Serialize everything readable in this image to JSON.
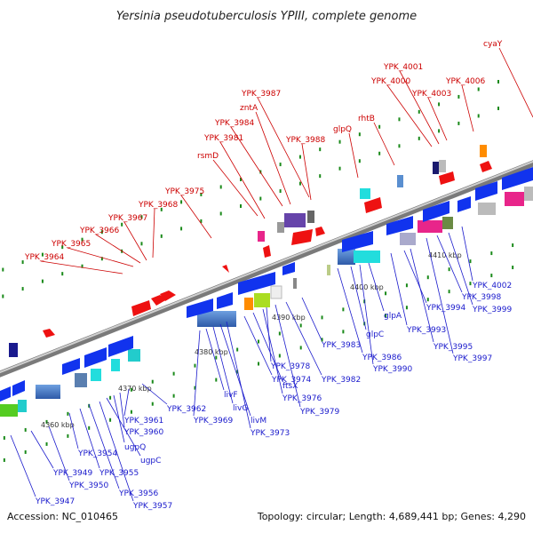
{
  "title": "Yersinia pseudotuberculosis YPIII, complete genome",
  "accession": "Accession: NC_010465",
  "topology": "Topology: circular; Length: 4,689,441 bp; Genes: 4,290",
  "ticks": [
    "4360 kbp",
    "4370 kbp",
    "4380 kbp",
    "4390 kbp",
    "4400 kbp",
    "4410 kbp"
  ],
  "top_labels": [
    "YPK_3964",
    "YPK_3965",
    "YPK_3966",
    "YPK_3967",
    "YPK_3968",
    "YPK_3975",
    "rsmD",
    "YPK_3981",
    "YPK_3984",
    "zntA",
    "YPK_3987",
    "YPK_3988",
    "glpQ",
    "rhtB",
    "YPK_4000",
    "YPK_4001",
    "YPK_4003",
    "YPK_4006",
    "cyaY"
  ],
  "bottom_labels": [
    "YPK_3947",
    "YPK_3949",
    "YPK_3950",
    "YPK_3954",
    "YPK_3955",
    "YPK_3956",
    "YPK_3957",
    "ugpC",
    "ugpQ",
    "YPK_3960",
    "YPK_3961",
    "YPK_3962",
    "YPK_3969",
    "livF",
    "livG",
    "livM",
    "YPK_3973",
    "YPK_3974",
    "ftsX",
    "YPK_3976",
    "YPK_3978",
    "YPK_3979",
    "YPK_3982",
    "YPK_3983",
    "YPK_3986",
    "glpC",
    "YPK_3990",
    "glpA",
    "YPK_3993",
    "YPK_3994",
    "YPK_3995",
    "YPK_3997",
    "YPK_3998",
    "YPK_3999",
    "YPK_4002"
  ],
  "colors": {
    "forward_gene": "#ee1111",
    "reverse_gene": "#1133ee",
    "top_label": "#cc0000",
    "bottom_label": "#1a1acc",
    "backbone": "#9a9a9a",
    "dots": "#1a8a1a"
  }
}
